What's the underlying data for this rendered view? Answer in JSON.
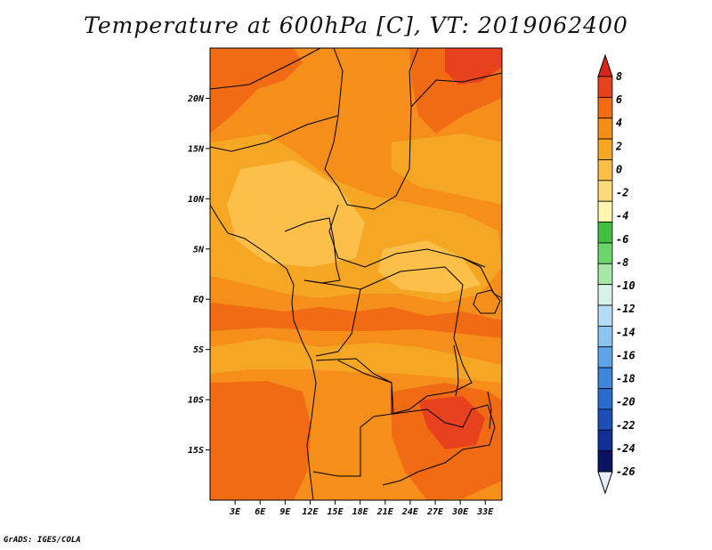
{
  "title": "Temperature at 600hPa [C], VT: 2019062400",
  "credit": "GrADS: IGES/COLA",
  "map": {
    "lon_range": [
      0,
      35
    ],
    "lat_range": [
      -20,
      25
    ],
    "lat_ticks": [
      {
        "value": 20,
        "label": "20N"
      },
      {
        "value": 15,
        "label": "15N"
      },
      {
        "value": 10,
        "label": "10N"
      },
      {
        "value": 5,
        "label": "5N"
      },
      {
        "value": 0,
        "label": "EQ"
      },
      {
        "value": -5,
        "label": "5S"
      },
      {
        "value": -10,
        "label": "10S"
      },
      {
        "value": -15,
        "label": "15S"
      }
    ],
    "lon_ticks": [
      {
        "value": 3,
        "label": "3E"
      },
      {
        "value": 6,
        "label": "6E"
      },
      {
        "value": 9,
        "label": "9E"
      },
      {
        "value": 12,
        "label": "12E"
      },
      {
        "value": 15,
        "label": "15E"
      },
      {
        "value": 18,
        "label": "18E"
      },
      {
        "value": 21,
        "label": "21E"
      },
      {
        "value": 24,
        "label": "24E"
      },
      {
        "value": 27,
        "label": "27E"
      },
      {
        "value": 30,
        "label": "30E"
      },
      {
        "value": 33,
        "label": "33E"
      }
    ]
  },
  "colorbar": {
    "levels": [
      "8",
      "6",
      "4",
      "2",
      "0",
      "-2",
      "-4",
      "-6",
      "-8",
      "-10",
      "-12",
      "-14",
      "-16",
      "-18",
      "-20",
      "-22",
      "-24",
      "-26"
    ],
    "colors": [
      "#e8411e",
      "#f06b14",
      "#f58e1a",
      "#f5a623",
      "#fbbf4a",
      "#fbdb7a",
      "#fdf5b0",
      "#3fbe3f",
      "#6bd46b",
      "#a6e8a6",
      "#d7f2e8",
      "#b4dcf5",
      "#8cc4f0",
      "#5fa3e6",
      "#3e86da",
      "#2a6bcc",
      "#1c4fb6",
      "#122f96",
      "#0a1460"
    ],
    "top_color": "#d8251a",
    "bottom_color": "#e6ecf8"
  },
  "field_colors": {
    "gt6": "#e8411e",
    "4to6": "#f06b14",
    "2to4": "#f58e1a",
    "0to2": "#f5a623",
    "m2to0": "#fbbf4a",
    "m4tom2": "#fbdb7a"
  }
}
